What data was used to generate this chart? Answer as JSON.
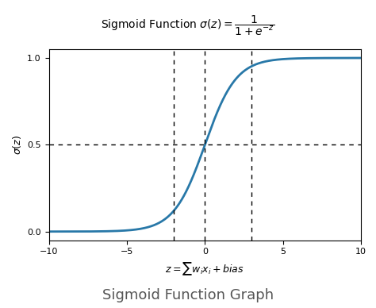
{
  "xlim": [
    -10,
    10
  ],
  "ylim": [
    -0.05,
    1.05
  ],
  "xticks": [
    -10,
    -5,
    0,
    5,
    10
  ],
  "yticks": [
    0.0,
    0.5,
    1.0
  ],
  "line_color": "#2878a8",
  "line_width": 2.0,
  "vlines": [
    -2,
    0,
    3
  ],
  "hline": 0.5,
  "vline_style": ":",
  "hline_style": ":",
  "vline_color": "black",
  "hline_color": "black",
  "xlabel": "$z = \\sum w_i x_i + bias$",
  "ylabel": "$\\sigma(z)$",
  "title": "Sigmoid Function $\\sigma(z) = \\dfrac{1}{1+e^{-z}}$",
  "caption": "Sigmoid Function Graph",
  "title_fontsize": 10,
  "caption_fontsize": 13,
  "xlabel_fontsize": 9,
  "ylabel_fontsize": 9,
  "tick_fontsize": 8,
  "background_color": "#ffffff"
}
